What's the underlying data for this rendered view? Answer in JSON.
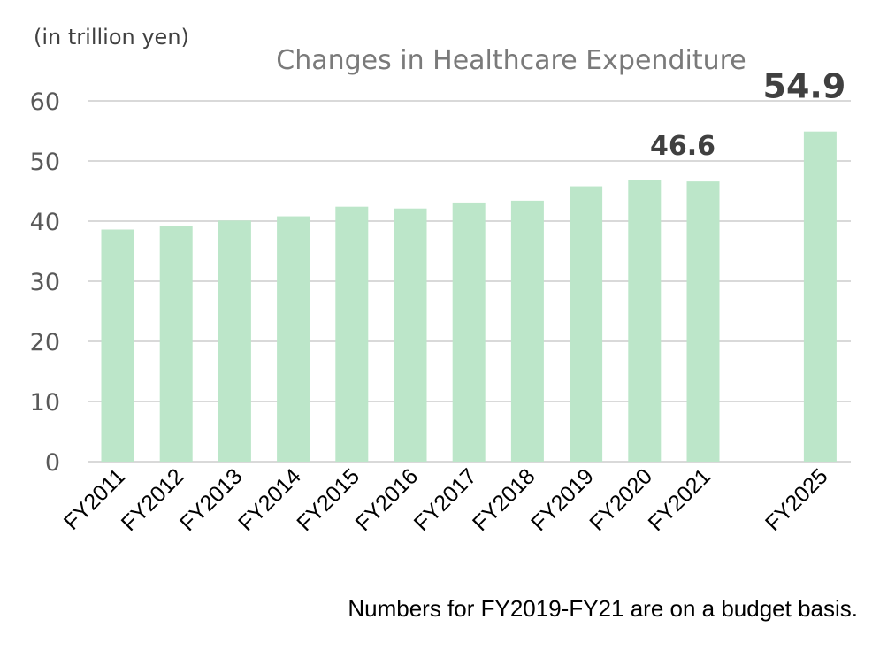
{
  "chart_data": {
    "type": "bar",
    "title": "Changes in Healthcare Expenditure",
    "unit_label": "(in trillion yen)",
    "categories": [
      "FY2011",
      "FY2012",
      "FY2013",
      "FY2014",
      "FY2015",
      "FY2016",
      "FY2017",
      "FY2018",
      "FY2019",
      "FY2020",
      "FY2021",
      "FY2025"
    ],
    "values": [
      38.6,
      39.2,
      40.1,
      40.8,
      42.4,
      42.1,
      43.1,
      43.4,
      45.8,
      46.8,
      46.6,
      54.9
    ],
    "ylim": [
      0,
      60
    ],
    "yticks": [
      "0",
      "10",
      "20",
      "30",
      "40",
      "50",
      "60"
    ],
    "data_labels": [
      {
        "category": "FY2021",
        "text": "46.6"
      },
      {
        "category": "FY2025",
        "text": "54.9"
      }
    ],
    "bar_color": "#bce6c9",
    "grid": true,
    "footnote": "Numbers for FY2019-FY21 are on a budget basis."
  }
}
